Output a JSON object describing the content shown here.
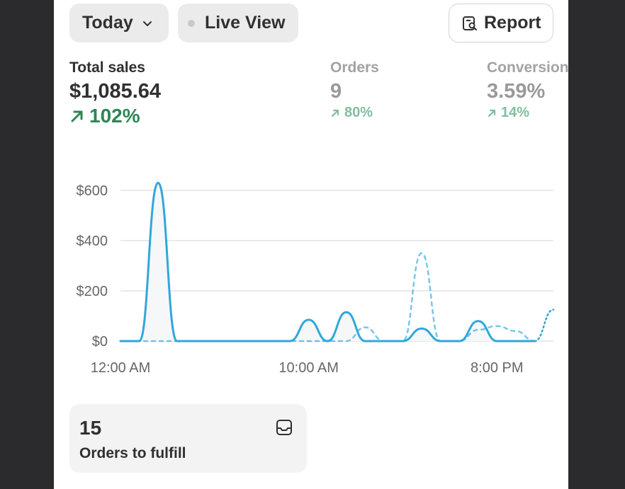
{
  "filters": {
    "date_label": "Today",
    "live_label": "Live View"
  },
  "report_label": "Report",
  "metrics": [
    {
      "label": "Total sales",
      "value": "$1,085.64",
      "change": "102%"
    },
    {
      "label": "Orders",
      "value": "9",
      "change": "80%"
    },
    {
      "label": "Conversion",
      "value": "3.59%",
      "change": "14%"
    }
  ],
  "chart_data": {
    "type": "line",
    "y_ticks": [
      "$600",
      "$400",
      "$200",
      "$0"
    ],
    "x_ticks": [
      "12:00 AM",
      "10:00 AM",
      "8:00 PM"
    ],
    "ylim": [
      0,
      600
    ],
    "x_unit": "hour of day",
    "series": [
      {
        "style": "solid",
        "x": [
          0,
          1,
          2,
          3,
          4,
          5,
          6,
          7,
          8,
          9,
          10,
          11,
          12,
          13,
          14,
          15,
          16,
          17,
          18,
          19,
          20,
          21,
          22
        ],
        "values": [
          0,
          0,
          630,
          0,
          0,
          0,
          0,
          0,
          0,
          0,
          85,
          0,
          115,
          0,
          0,
          0,
          50,
          0,
          0,
          80,
          0,
          0,
          0
        ]
      },
      {
        "style": "dashed",
        "x": [
          0,
          1,
          2,
          3,
          4,
          5,
          6,
          7,
          8,
          9,
          10,
          11,
          12,
          13,
          14,
          15,
          16,
          17,
          18,
          19,
          20,
          21,
          22
        ],
        "values": [
          0,
          0,
          0,
          0,
          0,
          0,
          0,
          0,
          0,
          0,
          0,
          0,
          0,
          55,
          0,
          0,
          350,
          0,
          0,
          45,
          60,
          40,
          0
        ]
      },
      {
        "style": "dotted",
        "x": [
          22,
          23
        ],
        "values": [
          0,
          125
        ]
      }
    ],
    "colors": {
      "line": "#30a7dc",
      "grid": "#e3e3e3",
      "fill": "#f6f7f8"
    }
  },
  "fulfill": {
    "count": "15",
    "label": "Orders to fulfill"
  }
}
